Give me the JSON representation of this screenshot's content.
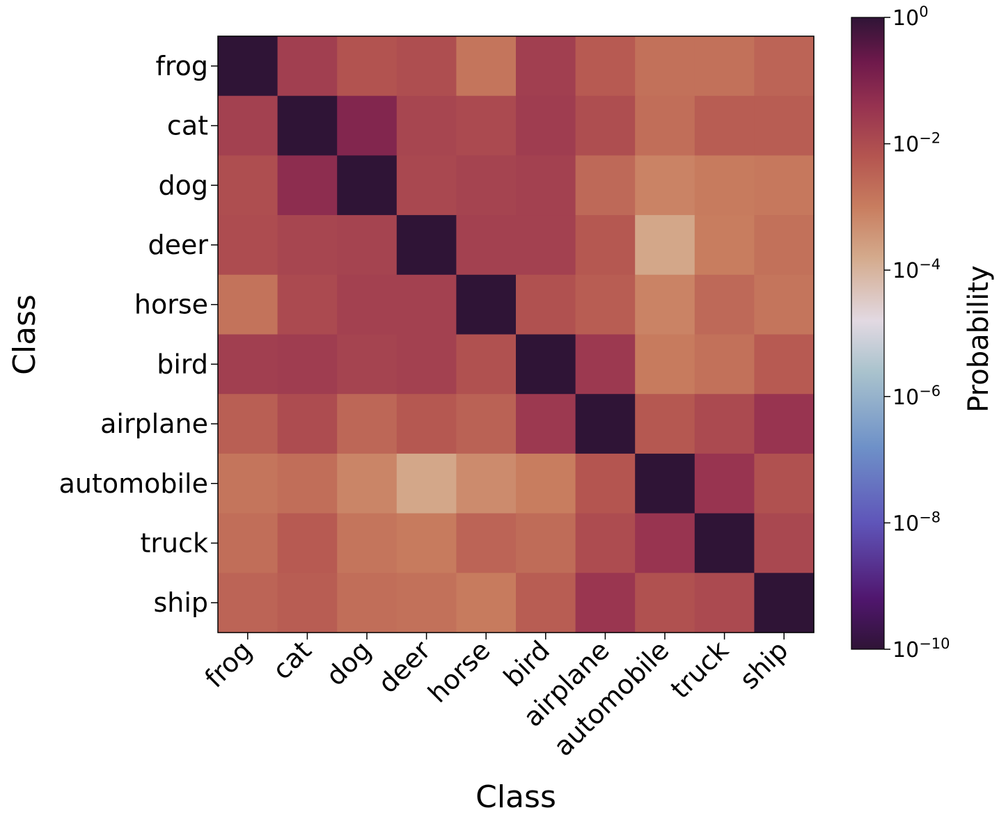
{
  "chart_data": {
    "type": "heatmap",
    "title": "",
    "xlabel": "Class",
    "ylabel": "Class",
    "x_categories": [
      "frog",
      "cat",
      "dog",
      "deer",
      "horse",
      "bird",
      "airplane",
      "automobile",
      "truck",
      "ship"
    ],
    "y_categories": [
      "frog",
      "cat",
      "dog",
      "deer",
      "horse",
      "bird",
      "airplane",
      "automobile",
      "truck",
      "ship"
    ],
    "color_scale": "log",
    "colorbar": {
      "label": "Probability",
      "range": [
        1e-10,
        1
      ],
      "ticks": [
        {
          "value": 1,
          "label": "10",
          "exp": "0"
        },
        {
          "value": 0.01,
          "label": "10",
          "exp": "−2"
        },
        {
          "value": 0.0001,
          "label": "10",
          "exp": "−4"
        },
        {
          "value": 1e-06,
          "label": "10",
          "exp": "−6"
        },
        {
          "value": 1e-08,
          "label": "10",
          "exp": "−8"
        },
        {
          "value": 1e-10,
          "label": "10",
          "exp": "−10"
        }
      ]
    },
    "log10_values": [
      [
        0.0,
        -1.7,
        -2.15,
        -2.05,
        -2.85,
        -1.7,
        -2.3,
        -2.75,
        -2.75,
        -2.5
      ],
      [
        -1.75,
        0.0,
        -1.05,
        -1.85,
        -1.95,
        -1.65,
        -2.05,
        -2.7,
        -2.35,
        -2.35
      ],
      [
        -2.05,
        -1.25,
        0.0,
        -1.9,
        -1.8,
        -1.75,
        -2.6,
        -3.1,
        -2.95,
        -2.9
      ],
      [
        -2.0,
        -1.85,
        -1.8,
        0.0,
        -1.75,
        -1.75,
        -2.25,
        -3.75,
        -3.0,
        -2.75
      ],
      [
        -2.8,
        -1.95,
        -1.75,
        -1.75,
        0.0,
        -2.1,
        -2.35,
        -3.1,
        -2.6,
        -2.85
      ],
      [
        -1.7,
        -1.65,
        -1.8,
        -1.75,
        -2.1,
        0.0,
        -1.55,
        -2.95,
        -2.75,
        -2.3
      ],
      [
        -2.4,
        -2.0,
        -2.55,
        -2.25,
        -2.45,
        -1.55,
        0.0,
        -2.25,
        -1.95,
        -1.45
      ],
      [
        -2.85,
        -2.7,
        -3.15,
        -3.75,
        -3.25,
        -3.0,
        -2.2,
        0.0,
        -1.45,
        -2.1
      ],
      [
        -2.7,
        -2.3,
        -2.85,
        -2.95,
        -2.5,
        -2.65,
        -2.0,
        -1.45,
        0.0,
        -1.9
      ],
      [
        -2.5,
        -2.35,
        -2.7,
        -2.75,
        -2.95,
        -2.35,
        -1.5,
        -2.1,
        -1.95,
        0.0
      ]
    ]
  }
}
